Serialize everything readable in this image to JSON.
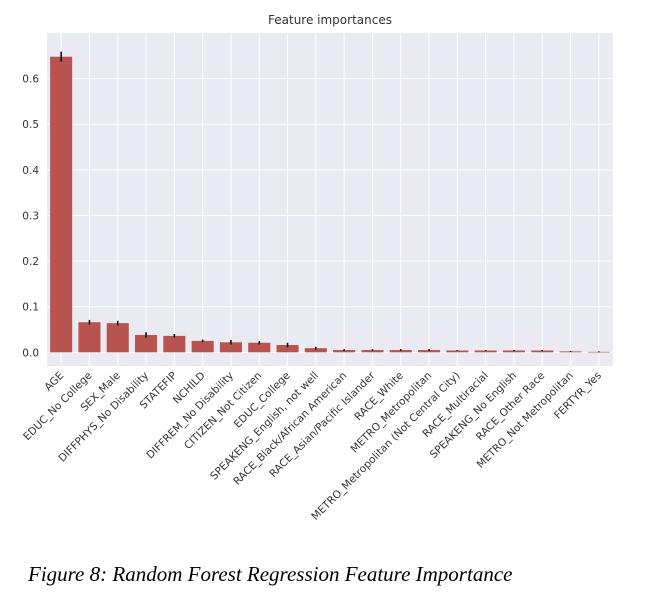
{
  "chart_data": {
    "type": "bar",
    "title": "Feature importances",
    "xlabel": "",
    "ylabel": "",
    "ylim": [
      -0.03,
      0.7
    ],
    "yticks": [
      0.0,
      0.1,
      0.2,
      0.3,
      0.4,
      0.5,
      0.6
    ],
    "ytick_labels": [
      "0.0",
      "0.1",
      "0.2",
      "0.3",
      "0.4",
      "0.5",
      "0.6"
    ],
    "grid": true,
    "bar_color": "#B85450",
    "error_color": "#111111",
    "background_color": "#EAEAF2",
    "categories": [
      "AGE",
      "EDUC_No College",
      "SEX_Male",
      "DIFFPHYS_No Disability",
      "STATEFIP",
      "NCHILD",
      "DIFFREM_No Disability",
      "CITIZEN_Not Citizen",
      "EDUC_College",
      "SPEAKENG_English, not well",
      "RACE_Black/African American",
      "RACE_Asian/Pacific Islander",
      "RACE_White",
      "METRO_Metropolitan",
      "METRO_Metropolitan (Not Central City)",
      "RACE_Multiracial",
      "SPEAKENG_No English",
      "RACE_Other Race",
      "METRO_Not Metropolitan",
      "FERTYR_Yes"
    ],
    "values": [
      0.648,
      0.066,
      0.064,
      0.038,
      0.036,
      0.025,
      0.022,
      0.021,
      0.016,
      0.009,
      0.005,
      0.005,
      0.005,
      0.005,
      0.004,
      0.004,
      0.004,
      0.004,
      0.002,
      0.001
    ],
    "errors": [
      0.011,
      0.005,
      0.005,
      0.006,
      0.004,
      0.003,
      0.005,
      0.004,
      0.005,
      0.003,
      0.002,
      0.002,
      0.002,
      0.002,
      0.001,
      0.001,
      0.001,
      0.001,
      0.001,
      0.001
    ]
  },
  "caption": "Figure 8: Random Forest Regression Feature Importance"
}
